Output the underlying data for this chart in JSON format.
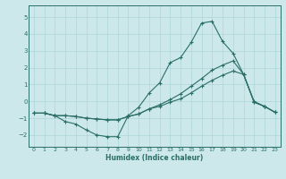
{
  "xlabel": "Humidex (Indice chaleur)",
  "xlim": [
    -0.5,
    23.5
  ],
  "ylim": [
    -2.7,
    5.7
  ],
  "yticks": [
    -2,
    -1,
    0,
    1,
    2,
    3,
    4,
    5
  ],
  "xticks": [
    0,
    1,
    2,
    3,
    4,
    5,
    6,
    7,
    8,
    9,
    10,
    11,
    12,
    13,
    14,
    15,
    16,
    17,
    18,
    19,
    20,
    21,
    22,
    23
  ],
  "line_color": "#2a6e68",
  "bg_color": "#cce8ea",
  "grid_color": "#add4d8",
  "line1_x": [
    0,
    1,
    2,
    3,
    4,
    5,
    6,
    7,
    8,
    9,
    10,
    11,
    12,
    13,
    14,
    15,
    16,
    17,
    18,
    19,
    20,
    21,
    22,
    23
  ],
  "line1_y": [
    -0.7,
    -0.7,
    -0.85,
    -1.2,
    -1.35,
    -1.7,
    -2.0,
    -2.1,
    -2.1,
    -0.85,
    -0.35,
    0.5,
    1.1,
    2.3,
    2.6,
    3.5,
    4.65,
    4.75,
    3.55,
    2.85,
    1.6,
    0.0,
    -0.3,
    -0.65
  ],
  "line2_x": [
    0,
    1,
    2,
    3,
    4,
    5,
    6,
    7,
    8,
    9,
    10,
    11,
    12,
    13,
    14,
    15,
    16,
    17,
    18,
    19,
    20,
    21,
    22,
    23
  ],
  "line2_y": [
    -0.7,
    -0.7,
    -0.85,
    -0.85,
    -0.9,
    -1.0,
    -1.05,
    -1.1,
    -1.1,
    -0.9,
    -0.75,
    -0.45,
    -0.2,
    0.1,
    0.45,
    0.9,
    1.35,
    1.85,
    2.15,
    2.4,
    1.6,
    -0.05,
    -0.3,
    -0.65
  ],
  "line3_x": [
    0,
    1,
    2,
    3,
    4,
    5,
    6,
    7,
    8,
    9,
    10,
    11,
    12,
    13,
    14,
    15,
    16,
    17,
    18,
    19,
    20,
    21,
    22,
    23
  ],
  "line3_y": [
    -0.7,
    -0.7,
    -0.85,
    -0.85,
    -0.9,
    -1.0,
    -1.05,
    -1.1,
    -1.1,
    -0.9,
    -0.75,
    -0.45,
    -0.3,
    -0.05,
    0.15,
    0.5,
    0.9,
    1.25,
    1.55,
    1.8,
    1.6,
    -0.05,
    -0.3,
    -0.65
  ]
}
